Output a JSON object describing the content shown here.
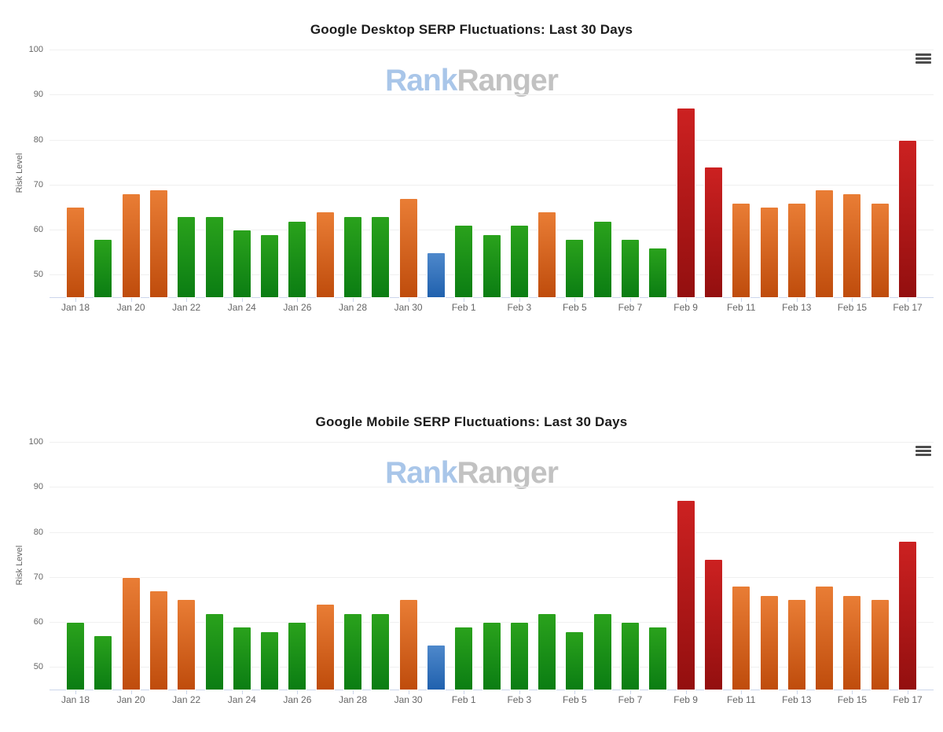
{
  "watermark": {
    "blue_text": "Rank",
    "gray_text": "Ranger"
  },
  "palette": {
    "green": {
      "top": "#2aa21c",
      "bottom": "#0b7d13"
    },
    "orange": {
      "top": "#e97d35",
      "bottom": "#bf4c0c"
    },
    "red": {
      "top": "#cc2121",
      "bottom": "#930f0f"
    },
    "blue": {
      "top": "#4e88cb",
      "bottom": "#2061ae"
    },
    "bar_border": "#ffffff",
    "grid_color": "#f0f0f0",
    "axis_color": "#ccd6eb",
    "label_color": "#666666"
  },
  "chart_data": [
    {
      "type": "bar",
      "title": "Google Desktop SERP Fluctuations: Last 30 Days",
      "xlabel": "",
      "ylabel": "Risk Level",
      "ylim": [
        45,
        100
      ],
      "yticks": [
        50,
        60,
        70,
        80,
        90,
        100
      ],
      "grid": "horizontal",
      "legend": "none",
      "x_label_every": 2,
      "categories": [
        "Jan 18",
        "Jan 19",
        "Jan 20",
        "Jan 21",
        "Jan 22",
        "Jan 23",
        "Jan 24",
        "Jan 25",
        "Jan 26",
        "Jan 27",
        "Jan 28",
        "Jan 29",
        "Jan 30",
        "Jan 31",
        "Feb 1",
        "Feb 2",
        "Feb 3",
        "Feb 4",
        "Feb 5",
        "Feb 6",
        "Feb 7",
        "Feb 8",
        "Feb 9",
        "Feb 10",
        "Feb 11",
        "Feb 12",
        "Feb 13",
        "Feb 14",
        "Feb 15",
        "Feb 16",
        "Feb 17"
      ],
      "values": [
        65,
        58,
        68,
        69,
        63,
        63,
        60,
        59,
        62,
        64,
        63,
        63,
        67,
        55,
        61,
        59,
        61,
        64,
        58,
        62,
        58,
        56,
        87,
        74,
        66,
        65,
        66,
        69,
        68,
        66,
        80
      ],
      "point_colors": [
        "orange",
        "green",
        "orange",
        "orange",
        "green",
        "green",
        "green",
        "green",
        "green",
        "orange",
        "green",
        "green",
        "orange",
        "blue",
        "green",
        "green",
        "green",
        "orange",
        "green",
        "green",
        "green",
        "green",
        "red",
        "red",
        "orange",
        "orange",
        "orange",
        "orange",
        "orange",
        "orange",
        "red"
      ]
    },
    {
      "type": "bar",
      "title": "Google Mobile SERP Fluctuations: Last 30 Days",
      "xlabel": "",
      "ylabel": "Risk Level",
      "ylim": [
        45,
        100
      ],
      "yticks": [
        50,
        60,
        70,
        80,
        90,
        100
      ],
      "grid": "horizontal",
      "legend": "none",
      "x_label_every": 2,
      "categories": [
        "Jan 18",
        "Jan 19",
        "Jan 20",
        "Jan 21",
        "Jan 22",
        "Jan 23",
        "Jan 24",
        "Jan 25",
        "Jan 26",
        "Jan 27",
        "Jan 28",
        "Jan 29",
        "Jan 30",
        "Jan 31",
        "Feb 1",
        "Feb 2",
        "Feb 3",
        "Feb 4",
        "Feb 5",
        "Feb 6",
        "Feb 7",
        "Feb 8",
        "Feb 9",
        "Feb 10",
        "Feb 11",
        "Feb 12",
        "Feb 13",
        "Feb 14",
        "Feb 15",
        "Feb 16",
        "Feb 17"
      ],
      "values": [
        60,
        57,
        70,
        67,
        65,
        62,
        59,
        58,
        60,
        64,
        62,
        62,
        65,
        55,
        59,
        60,
        60,
        62,
        58,
        62,
        60,
        59,
        87,
        74,
        68,
        66,
        65,
        68,
        66,
        65,
        78
      ],
      "point_colors": [
        "green",
        "green",
        "orange",
        "orange",
        "orange",
        "green",
        "green",
        "green",
        "green",
        "orange",
        "green",
        "green",
        "orange",
        "blue",
        "green",
        "green",
        "green",
        "green",
        "green",
        "green",
        "green",
        "green",
        "red",
        "red",
        "orange",
        "orange",
        "orange",
        "orange",
        "orange",
        "orange",
        "red"
      ]
    }
  ]
}
